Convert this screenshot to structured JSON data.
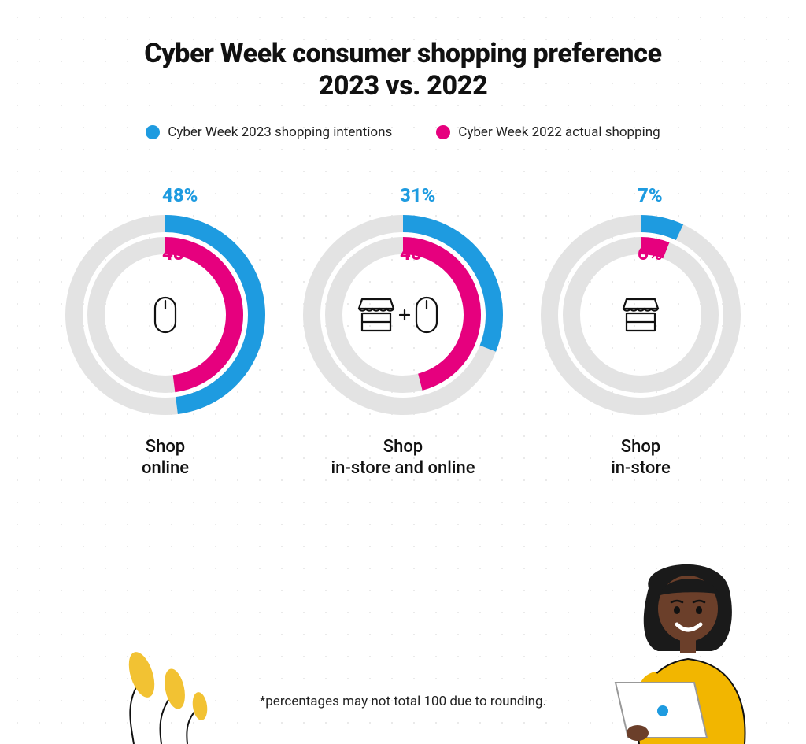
{
  "title_line1": "Cyber Week consumer shopping preference",
  "title_line2": "2023 vs. 2022",
  "colors": {
    "outer": "#1e9be0",
    "inner": "#e6007e",
    "track": "#e3e3e3",
    "text": "#111111",
    "accent_dot": "#1e9be0",
    "plant_yellow": "#f2c233",
    "person_skin": "#6b3f2a",
    "person_hair": "#1a1a1a",
    "person_shirt": "#f2b600",
    "laptop": "#ffffff",
    "laptop_stroke": "#888888"
  },
  "legend": {
    "outer": "Cyber Week 2023 shopping intentions",
    "inner": "Cyber Week 2022 actual shopping"
  },
  "donut_style": {
    "outer_radius": 116,
    "inner_radius": 88,
    "stroke_width": 22,
    "track_opacity": 1
  },
  "charts": [
    {
      "id": "online",
      "label": "Shop\nonline",
      "outer_pct": 48,
      "inner_pct": 48,
      "outer_text": "48%",
      "inner_text": "48%",
      "icon": "mouse"
    },
    {
      "id": "both",
      "label": "Shop\nin-store and online",
      "outer_pct": 31,
      "inner_pct": 46,
      "outer_text": "31%",
      "inner_text": "46%",
      "icon": "store-plus-mouse"
    },
    {
      "id": "instore",
      "label": "Shop\nin-store",
      "outer_pct": 7,
      "inner_pct": 6,
      "outer_text": "7%",
      "inner_text": "6%",
      "icon": "store"
    }
  ],
  "footnote": "*percentages may not total 100 due to rounding."
}
